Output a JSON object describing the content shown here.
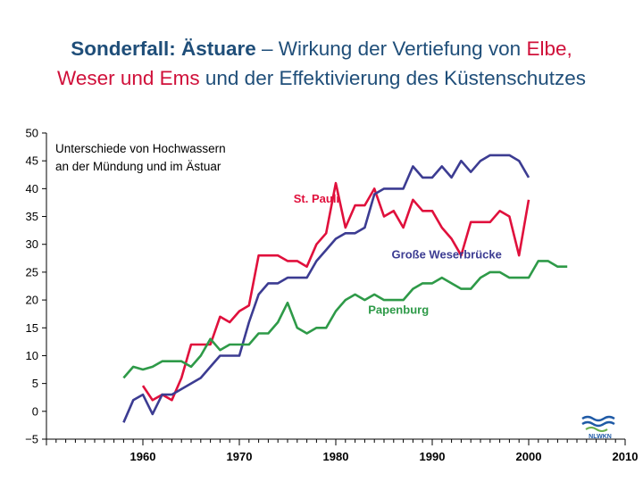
{
  "title": {
    "line1_bold": "Sonderfall: Ästuare",
    "line1_rest": " – Wirkung der Vertiefung von ",
    "line1_red": "Elbe,",
    "line2_red": "Weser und Ems",
    "line2_rest": " und der Effektivierung des Küstenschutzes"
  },
  "annotation": {
    "line1": "Unterschiede von Hochwassern",
    "line2": "an der Mündung und im Ästuar"
  },
  "logo": {
    "text": "NLWKN",
    "color_primary": "#1f5aa6",
    "color_secondary": "#6ab04c"
  },
  "chart_data": {
    "type": "line",
    "title": "Unterschiede von Hochwassern an der Mündung und im Ästuar",
    "xlabel": "",
    "ylabel": "",
    "xlim": [
      1950,
      2010
    ],
    "ylim": [
      -5,
      50
    ],
    "xticks": [
      1960,
      1970,
      1980,
      1990,
      2000,
      2010
    ],
    "yticks": [
      -5,
      0,
      5,
      10,
      15,
      20,
      25,
      30,
      35,
      40,
      45,
      50
    ],
    "ytick_labels": [
      "−5",
      "0",
      "5",
      "10",
      "15",
      "20",
      "25",
      "30",
      "35",
      "40",
      "45",
      "50"
    ],
    "grid": false,
    "series": [
      {
        "name": "St. Pauli",
        "color": "#e0103c",
        "label_pos": [
          1978,
          37.5
        ],
        "x": [
          1958,
          1959,
          1960,
          1961,
          1962,
          1963,
          1964,
          1965,
          1966,
          1967,
          1968,
          1969,
          1970,
          1971,
          1972,
          1973,
          1974,
          1975,
          1976,
          1977,
          1978,
          1979,
          1980,
          1981,
          1982,
          1983,
          1984,
          1985,
          1986,
          1987,
          1988,
          1989,
          1990,
          1991,
          1992,
          1993,
          1994,
          1995,
          1996,
          1997,
          1998,
          1999,
          2000
        ],
        "y": [
          null,
          null,
          4.6,
          2,
          3,
          2,
          6,
          12,
          12,
          12,
          17,
          16,
          18,
          19,
          28,
          28,
          28,
          27,
          27,
          26,
          30,
          32,
          41,
          33,
          37,
          37,
          40,
          35,
          36,
          33,
          38,
          36,
          36,
          33,
          31,
          28,
          34,
          34,
          34,
          36,
          35,
          28,
          38
        ]
      },
      {
        "name": "Große Weserbrücke",
        "color": "#3c3c92",
        "label_pos": [
          1991.5,
          27.5
        ],
        "x": [
          1958,
          1959,
          1960,
          1961,
          1962,
          1963,
          1964,
          1965,
          1966,
          1967,
          1968,
          1969,
          1970,
          1971,
          1972,
          1973,
          1974,
          1975,
          1976,
          1977,
          1978,
          1979,
          1980,
          1981,
          1982,
          1983,
          1984,
          1985,
          1986,
          1987,
          1988,
          1989,
          1990,
          1991,
          1992,
          1993,
          1994,
          1995,
          1996,
          1997,
          1998,
          1999,
          2000
        ],
        "y": [
          -2,
          2,
          3,
          -0.5,
          3,
          3,
          4,
          5,
          6,
          8,
          10,
          10,
          10,
          16,
          21,
          23,
          23,
          24,
          24,
          24,
          27,
          29,
          31,
          32,
          32,
          33,
          39,
          40,
          40,
          40,
          44,
          42,
          42,
          44,
          42,
          45,
          43,
          45,
          46,
          46,
          46,
          45,
          42
        ]
      },
      {
        "name": "Papenburg",
        "color": "#2e9a48",
        "label_pos": [
          1986.5,
          17.5
        ],
        "x": [
          1958,
          1959,
          1960,
          1961,
          1962,
          1963,
          1964,
          1965,
          1966,
          1967,
          1968,
          1969,
          1970,
          1971,
          1972,
          1973,
          1974,
          1975,
          1976,
          1977,
          1978,
          1979,
          1980,
          1981,
          1982,
          1983,
          1984,
          1985,
          1986,
          1987,
          1988,
          1989,
          1990,
          1991,
          1992,
          1993,
          1994,
          1995,
          1996,
          1997,
          1998,
          1999,
          2000,
          2001,
          2002,
          2003,
          2004
        ],
        "y": [
          6,
          8,
          7.5,
          8,
          9,
          9,
          9,
          8,
          10,
          13,
          11,
          12,
          12,
          12,
          14,
          14,
          16,
          19.5,
          15,
          14,
          15,
          15,
          18,
          20,
          21,
          20,
          21,
          20,
          20,
          20,
          22,
          23,
          23,
          24,
          23,
          22,
          22,
          24,
          25,
          25,
          24,
          24,
          24,
          27,
          27,
          26,
          26
        ]
      }
    ]
  }
}
